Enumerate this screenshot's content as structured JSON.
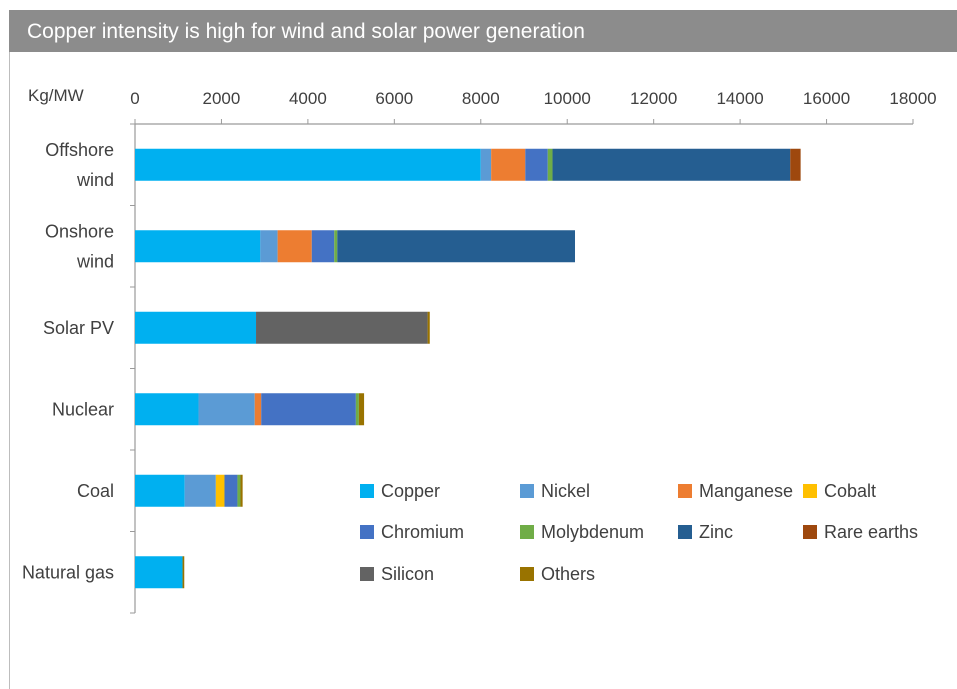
{
  "chart_data": {
    "type": "bar",
    "orientation": "horizontal",
    "stacked": true,
    "title": "Copper intensity is high for wind and solar power generation",
    "unit_label": "Kg/MW",
    "xlim": [
      0,
      18000
    ],
    "xticks": [
      0,
      2000,
      4000,
      6000,
      8000,
      10000,
      12000,
      14000,
      16000,
      18000
    ],
    "x_axis_position": "top",
    "grid": false,
    "legend_position": "bottom-right",
    "categories": [
      [
        "Offshore",
        "wind"
      ],
      [
        "Onshore",
        "wind"
      ],
      [
        "Solar PV"
      ],
      [
        "Nuclear"
      ],
      [
        "Coal"
      ],
      [
        "Natural gas"
      ]
    ],
    "series": [
      {
        "name": "Copper",
        "color": "#00b0f0",
        "values": [
          8000,
          2900,
          2800,
          1470,
          1150,
          1100
        ]
      },
      {
        "name": "Nickel",
        "color": "#5b9bd5",
        "values": [
          240,
          400,
          0,
          1300,
          720,
          0
        ]
      },
      {
        "name": "Manganese",
        "color": "#ed7d31",
        "values": [
          790,
          790,
          0,
          150,
          0,
          0
        ]
      },
      {
        "name": "Cobalt",
        "color": "#ffc000",
        "values": [
          0,
          0,
          0,
          0,
          200,
          0
        ]
      },
      {
        "name": "Chromium",
        "color": "#4472c4",
        "values": [
          520,
          520,
          0,
          2190,
          300,
          0
        ]
      },
      {
        "name": "Molybdenum",
        "color": "#70ad47",
        "values": [
          110,
          70,
          0,
          70,
          70,
          0
        ]
      },
      {
        "name": "Zinc",
        "color": "#255e91",
        "values": [
          5500,
          5500,
          0,
          0,
          0,
          0
        ]
      },
      {
        "name": "Rare earths",
        "color": "#9e480e",
        "values": [
          240,
          0,
          0,
          0,
          0,
          0
        ]
      },
      {
        "name": "Silicon",
        "color": "#636363",
        "values": [
          0,
          0,
          3970,
          0,
          0,
          0
        ]
      },
      {
        "name": "Others",
        "color": "#997300",
        "values": [
          0,
          0,
          50,
          120,
          50,
          40
        ]
      }
    ]
  }
}
